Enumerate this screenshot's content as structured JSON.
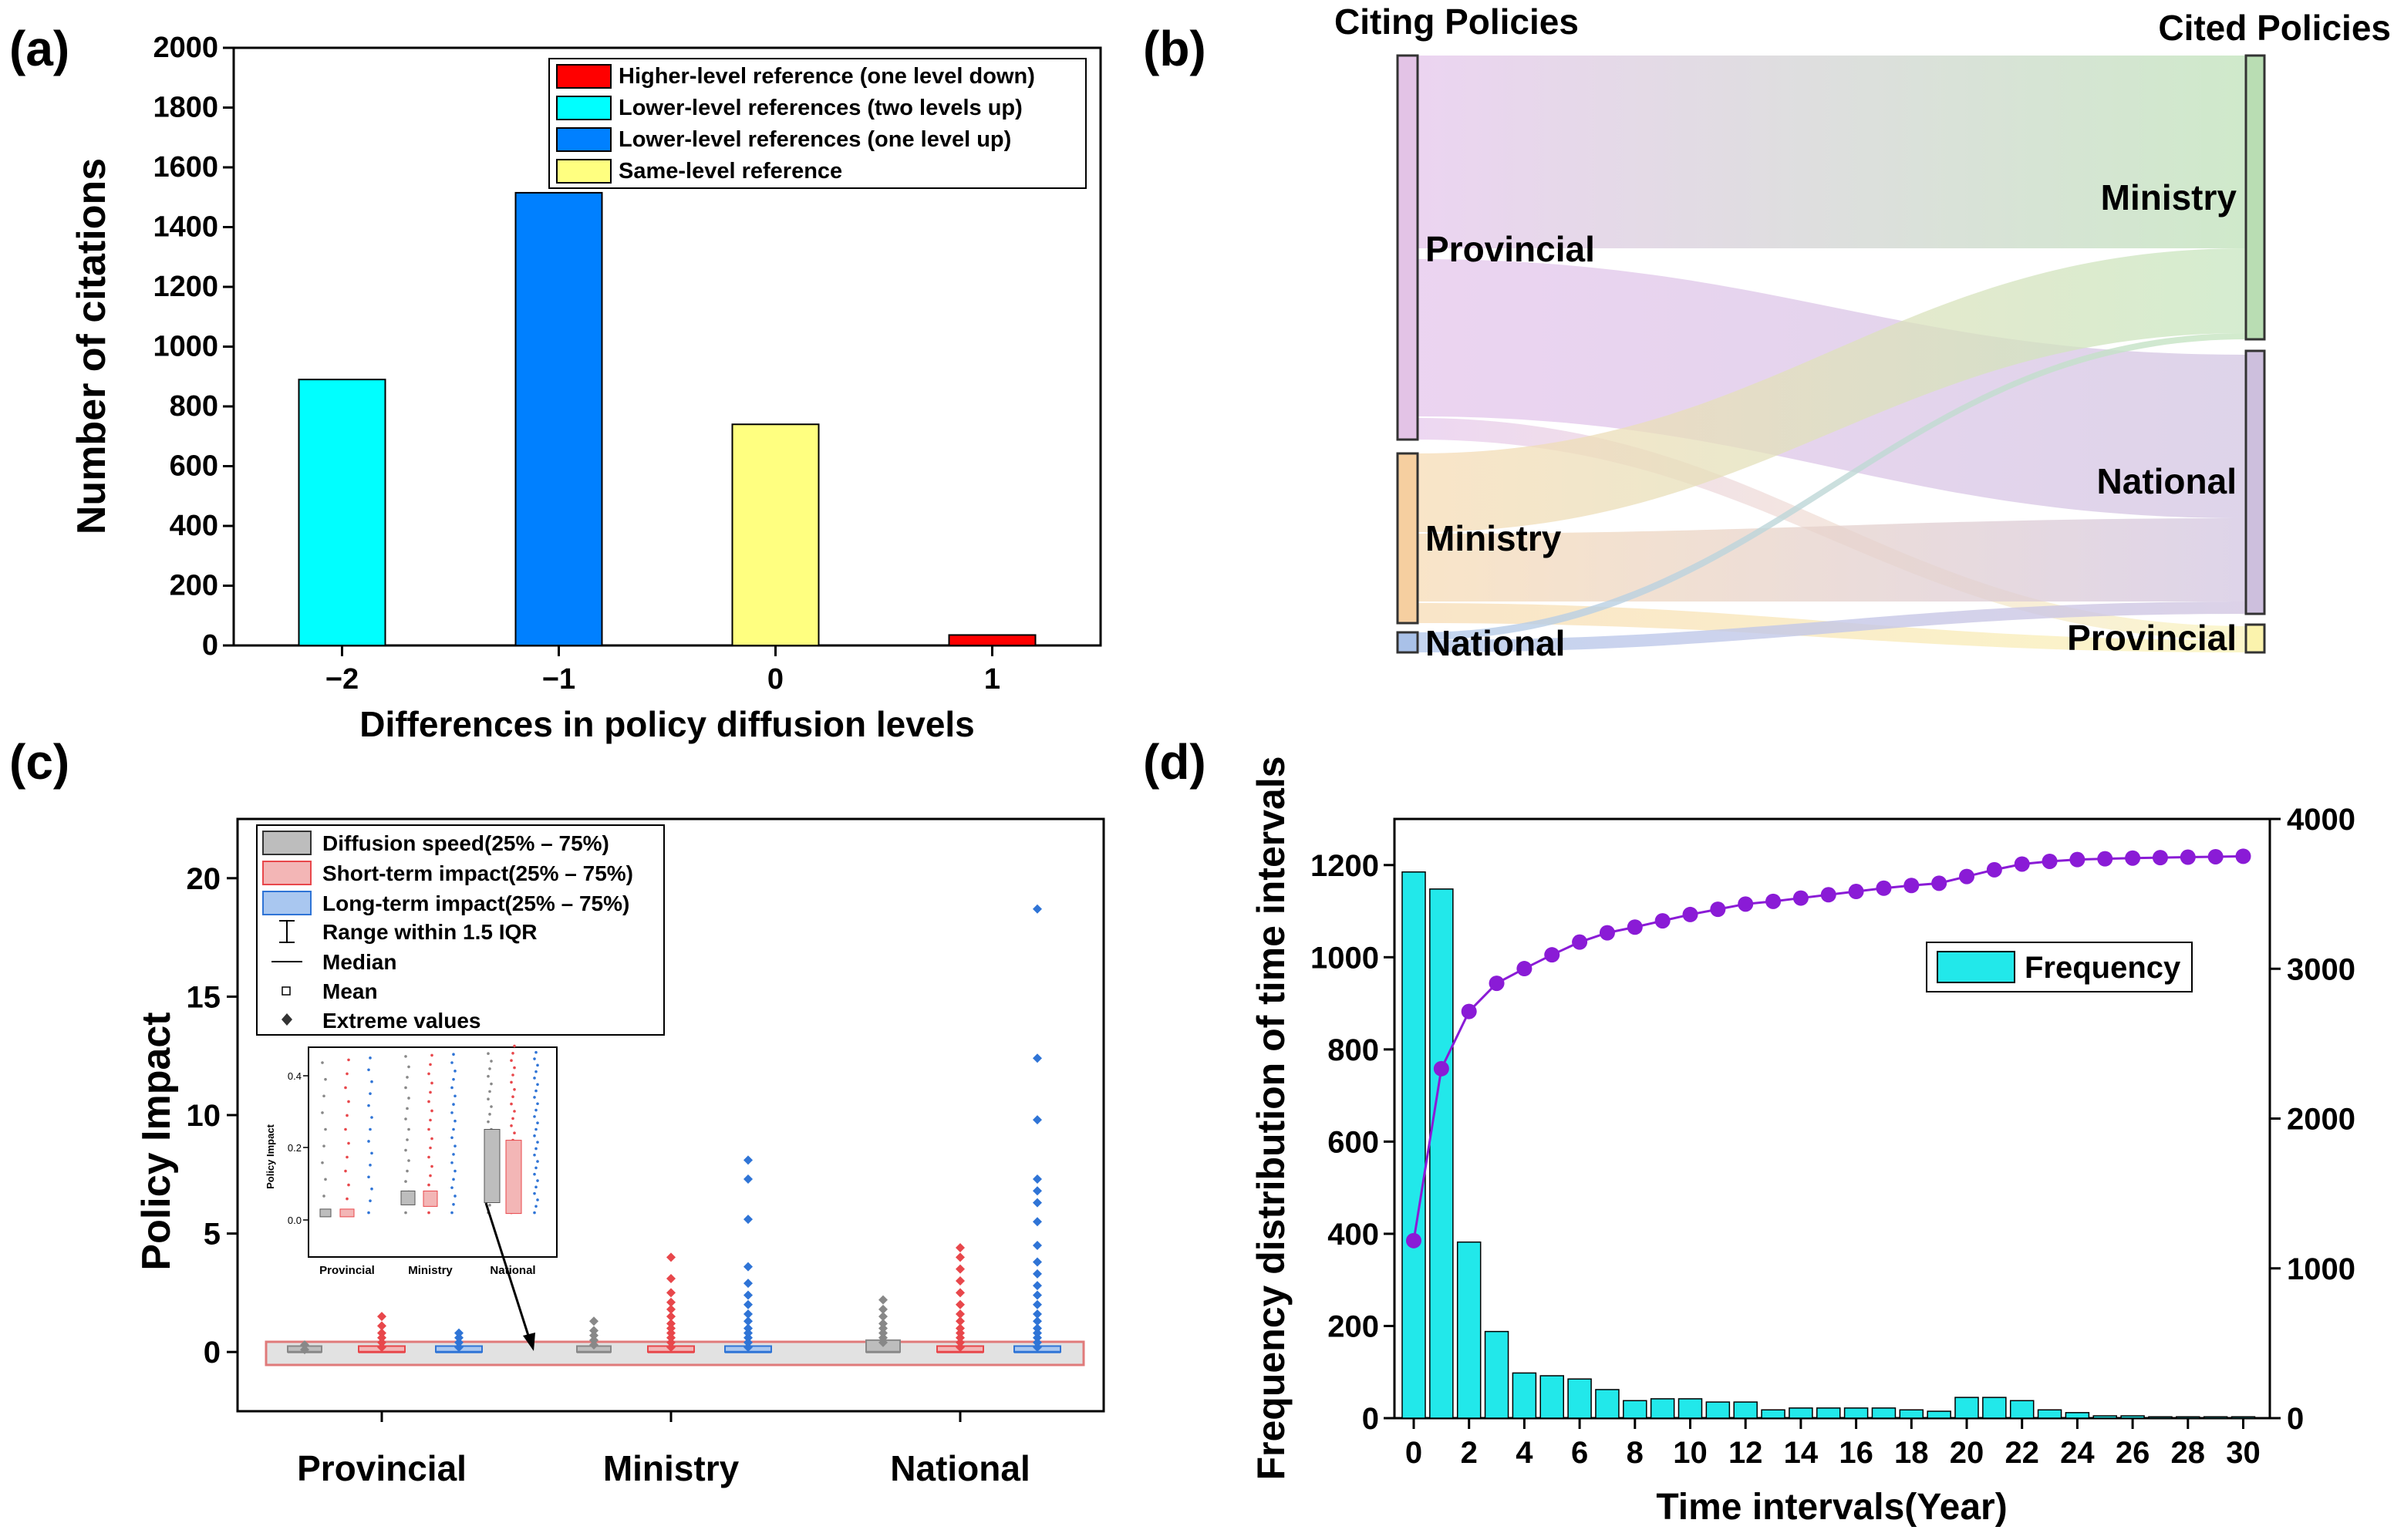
{
  "panel_labels": {
    "a": "(a)",
    "b": "(b)",
    "c": "(c)",
    "d": "(d)"
  },
  "colors": {
    "higher": "#ff0000",
    "lower2": "#00ffff",
    "lower1": "#0080ff",
    "same": "#ffff80",
    "frequency": "#22e8ea",
    "cumulative": "#8a1bd6"
  },
  "chart_data": [
    {
      "id": "a",
      "type": "bar",
      "categories": [
        "−2",
        "−1",
        "0",
        "1"
      ],
      "values": [
        890,
        1515,
        740,
        35
      ],
      "series_colors": [
        "#00ffff",
        "#0080ff",
        "#ffff80",
        "#ff0000"
      ],
      "xlabel": "Differences in policy diffusion levels",
      "ylabel": "Number of citations",
      "ylim": [
        0,
        2000
      ],
      "yticks": [
        0,
        200,
        400,
        600,
        800,
        1000,
        1200,
        1400,
        1600,
        1800,
        2000
      ],
      "legend": [
        {
          "label": "Higher-level reference (one level down)",
          "color": "#ff0000"
        },
        {
          "label": "Lower-level references (two levels up)",
          "color": "#00ffff"
        },
        {
          "label": "Lower-level references (one level up)",
          "color": "#0080ff"
        },
        {
          "label": "Same-level reference",
          "color": "#ffff80"
        }
      ]
    },
    {
      "id": "b",
      "type": "sankey",
      "left_title": "Citing Policies",
      "right_title": "Cited Policies",
      "left_nodes": [
        {
          "label": "Provincial",
          "color": "#e3c3e6"
        },
        {
          "label": "Ministry",
          "color": "#f6cfa0"
        },
        {
          "label": "National",
          "color": "#a9c1e8"
        }
      ],
      "right_nodes": [
        {
          "label": "Ministry",
          "color": "#b9ddb3"
        },
        {
          "label": "National",
          "color": "#cdbfdd"
        },
        {
          "label": "Provincial",
          "color": "#fbf3ad"
        }
      ],
      "flows": [
        {
          "from": "Provincial",
          "to": "Ministry"
        },
        {
          "from": "Provincial",
          "to": "National"
        },
        {
          "from": "Provincial",
          "to": "Provincial"
        },
        {
          "from": "Ministry",
          "to": "Ministry"
        },
        {
          "from": "Ministry",
          "to": "National"
        },
        {
          "from": "Ministry",
          "to": "Provincial"
        },
        {
          "from": "National",
          "to": "Ministry"
        },
        {
          "from": "National",
          "to": "National"
        }
      ]
    },
    {
      "id": "c",
      "type": "box",
      "categories": [
        "Provincial",
        "Ministry",
        "National"
      ],
      "ylabel": "Policy Impact",
      "ylim": [
        -2.5,
        22.5
      ],
      "yticks": [
        0,
        5,
        10,
        15,
        20
      ],
      "series": [
        {
          "name": "Diffusion speed",
          "color": "#888888",
          "extremes": [
            [
              0.1,
              0.3
            ],
            [
              0.3,
              0.5,
              0.7,
              0.9,
              1.3
            ],
            [
              0.4,
              0.6,
              0.8,
              1.0,
              1.2,
              1.5,
              1.8,
              2.2
            ]
          ]
        },
        {
          "name": "Short-term impact",
          "color": "#e8474b",
          "extremes": [
            [
              0.2,
              0.4,
              0.6,
              0.8,
              1.1,
              1.5
            ],
            [
              0.2,
              0.4,
              0.6,
              0.8,
              1.0,
              1.2,
              1.5,
              1.8,
              2.1,
              2.5,
              3.1,
              4.0
            ],
            [
              0.2,
              0.4,
              0.6,
              0.8,
              1.0,
              1.3,
              1.6,
              2.0,
              2.5,
              3.0,
              3.5,
              4.0,
              4.4
            ]
          ]
        },
        {
          "name": "Long-term impact",
          "color": "#2f74d6",
          "extremes": [
            [
              0.2,
              0.4,
              0.6,
              0.8
            ],
            [
              0.2,
              0.4,
              0.6,
              0.8,
              1.0,
              1.3,
              1.6,
              2.0,
              2.4,
              2.9,
              3.6,
              5.6,
              7.3,
              8.1
            ],
            [
              0.2,
              0.4,
              0.6,
              0.8,
              1.0,
              1.3,
              1.6,
              2.0,
              2.4,
              2.8,
              3.3,
              3.8,
              4.5,
              5.5,
              6.3,
              6.8,
              7.3,
              9.8,
              12.4,
              18.7
            ]
          ]
        }
      ],
      "legend": [
        {
          "label": "Diffusion speed(25% – 75%)",
          "kind": "box-gray"
        },
        {
          "label": "Short-term impact(25% – 75%)",
          "kind": "box-red"
        },
        {
          "label": "Long-term impact(25% – 75%)",
          "kind": "box-blue"
        },
        {
          "label": "Range within 1.5 IQR",
          "kind": "whisker"
        },
        {
          "label": "Median",
          "kind": "line"
        },
        {
          "label": "Mean",
          "kind": "square"
        },
        {
          "label": "Extreme values",
          "kind": "diamond"
        }
      ],
      "inset": {
        "ylabel": "Policy Impact",
        "yticks": [
          "0.0",
          "0.2",
          "0.4"
        ],
        "categories": [
          "Provincial",
          "Ministry",
          "National"
        ]
      }
    },
    {
      "id": "d",
      "type": "bar+line",
      "x": [
        0,
        1,
        2,
        3,
        4,
        5,
        6,
        7,
        8,
        9,
        10,
        11,
        12,
        13,
        14,
        15,
        16,
        17,
        18,
        19,
        20,
        21,
        22,
        23,
        24,
        25,
        26,
        27,
        28,
        29,
        30
      ],
      "frequency": [
        1185,
        1148,
        382,
        188,
        98,
        92,
        85,
        62,
        38,
        42,
        42,
        35,
        35,
        18,
        22,
        22,
        22,
        22,
        18,
        15,
        45,
        45,
        38,
        18,
        12,
        5,
        5,
        3,
        3,
        3,
        3
      ],
      "cumulative": [
        1185,
        2333,
        2715,
        2903,
        3001,
        3093,
        3178,
        3240,
        3278,
        3320,
        3362,
        3397,
        3432,
        3450,
        3472,
        3494,
        3516,
        3538,
        3556,
        3571,
        3616,
        3661,
        3699,
        3717,
        3729,
        3734,
        3739,
        3742,
        3745,
        3748,
        3751
      ],
      "xlabel": "Time intervals(Year)",
      "ylabel": "Frequency distribution of time intervals",
      "ylim_left": [
        0,
        1300
      ],
      "ylim_right": [
        0,
        4000
      ],
      "yticks_left": [
        0,
        200,
        400,
        600,
        800,
        1000,
        1200
      ],
      "yticks_right": [
        0,
        1000,
        2000,
        3000,
        4000
      ],
      "xticks": [
        0,
        2,
        4,
        6,
        8,
        10,
        12,
        14,
        16,
        18,
        20,
        22,
        24,
        26,
        28,
        30
      ],
      "legend": "Frequency"
    }
  ]
}
